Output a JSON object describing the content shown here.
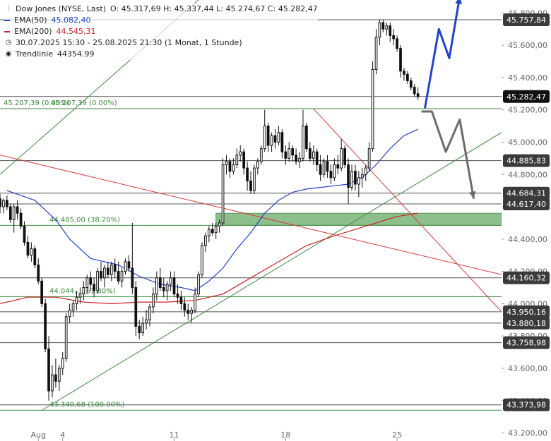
{
  "legend": {
    "instrument": "Dow Jones (NYSE, Last)",
    "ohlc": "O: 45.317,69  H: 45.337,44  L: 45.274,67  C: 45.282,47",
    "ema50_label": "EMA(50)",
    "ema50_value": "45.082,40",
    "ema200_label": "EMA(200)",
    "ema200_value": "44.545,31",
    "range": "30.07.2025 15:30 - 25.08.2025 21:30  (1 Monat, 1 Stunde)",
    "trendline_label": "Trendlinie",
    "trendline_value": "44354.99",
    "colors": {
      "ema50": "#2244cc",
      "ema200": "#cc2222",
      "text": "#222222"
    }
  },
  "chart_data": {
    "type": "line",
    "instrument": "Dow Jones (NYSE, Last)",
    "y_ticks": [
      "43.200,00",
      "43.400,00",
      "43.600,00",
      "43.800,00",
      "44.000,00",
      "44.200,00",
      "44.400,00",
      "44.600,00",
      "44.800,00",
      "45.000,00",
      "45.200,00",
      "45.400,00",
      "45.600,00",
      "45.800,00"
    ],
    "y_tick_values": [
      43200,
      43400,
      43600,
      43800,
      44000,
      44200,
      44400,
      44600,
      44800,
      45000,
      45200,
      45400,
      45600,
      45800
    ],
    "ylim": [
      43150,
      45880
    ],
    "x_ticks": [
      {
        "label": "Aug",
        "t": 5.5
      },
      {
        "label": "4",
        "t": 9
      },
      {
        "label": "11",
        "t": 25
      },
      {
        "label": "18",
        "t": 41
      },
      {
        "label": "25",
        "t": 57
      }
    ],
    "xlim": [
      0,
      72
    ],
    "price_levels": [
      {
        "value": 45757.84,
        "label": "45.757,84",
        "style": "dark"
      },
      {
        "value": 45282.47,
        "label": "45.282,47",
        "style": "black"
      },
      {
        "value": 44885.83,
        "label": "44.885,83",
        "style": "dark"
      },
      {
        "value": 44684.31,
        "label": "44.684,31",
        "style": "dark"
      },
      {
        "value": 44617.4,
        "label": "44.617,40",
        "style": "dark"
      },
      {
        "value": 44160.32,
        "label": "44.160,32",
        "style": "dark"
      },
      {
        "value": 43950.16,
        "label": "43.950,16",
        "style": "dark"
      },
      {
        "value": 43880.18,
        "label": "43.880,18",
        "style": "dark"
      },
      {
        "value": 43758.98,
        "label": "43.758,98",
        "style": "dark"
      },
      {
        "value": 43373.98,
        "label": "43.373,98",
        "style": "dark"
      }
    ],
    "fib_levels": [
      {
        "value": 45207.39,
        "label": "45.207,39 (0.00%)",
        "ghost_label": "45.207,39 (0.00%)"
      },
      {
        "value": 44485.0,
        "label": "44.485,00 (38.20%)"
      },
      {
        "value": 44044.0,
        "label": "44.044,...(61.80%)"
      },
      {
        "value": 43340.68,
        "label": "43.340,68 (100.00%)"
      }
    ],
    "support_zone": {
      "low": 44485,
      "high": 44560,
      "t0": 31,
      "t1": 72
    },
    "candles": [
      [
        0,
        44650,
        44680,
        44560,
        44600
      ],
      [
        0.5,
        44600,
        44650,
        44560,
        44640
      ],
      [
        1,
        44640,
        44670,
        44580,
        44600
      ],
      [
        1.5,
        44600,
        44620,
        44500,
        44520
      ],
      [
        2,
        44520,
        44620,
        44440,
        44600
      ],
      [
        2.5,
        44600,
        44640,
        44520,
        44560
      ],
      [
        3,
        44560,
        44590,
        44460,
        44480
      ],
      [
        3.5,
        44480,
        44510,
        44360,
        44380
      ],
      [
        4,
        44380,
        44420,
        44280,
        44300
      ],
      [
        4.5,
        44300,
        44380,
        44260,
        44340
      ],
      [
        5,
        44340,
        44360,
        44220,
        44240
      ],
      [
        5.5,
        44240,
        44280,
        44120,
        44140
      ],
      [
        6,
        44140,
        44160,
        43980,
        44000
      ],
      [
        6.5,
        44000,
        44030,
        43700,
        43720
      ],
      [
        7,
        43720,
        43800,
        43400,
        43460
      ],
      [
        7.5,
        43460,
        43620,
        43420,
        43560
      ],
      [
        8,
        43560,
        43660,
        43480,
        43520
      ],
      [
        8.5,
        43520,
        43620,
        43460,
        43600
      ],
      [
        9,
        43600,
        43700,
        43560,
        43660
      ],
      [
        9.5,
        43660,
        43940,
        43640,
        43920
      ],
      [
        10,
        43920,
        44000,
        43880,
        43960
      ],
      [
        10.5,
        43960,
        44020,
        43920,
        44000
      ],
      [
        11,
        44000,
        44080,
        43960,
        44040
      ],
      [
        11.5,
        44040,
        44100,
        44000,
        44060
      ],
      [
        12,
        44060,
        44140,
        44020,
        44100
      ],
      [
        12.5,
        44100,
        44180,
        44060,
        44160
      ],
      [
        13,
        44160,
        44200,
        44080,
        44120
      ],
      [
        13.5,
        44120,
        44160,
        44040,
        44080
      ],
      [
        14,
        44080,
        44220,
        44060,
        44200
      ],
      [
        14.5,
        44200,
        44260,
        44140,
        44160
      ],
      [
        15,
        44160,
        44240,
        44100,
        44220
      ],
      [
        15.5,
        44220,
        44260,
        44160,
        44180
      ],
      [
        16,
        44180,
        44260,
        44140,
        44240
      ],
      [
        16.5,
        44240,
        44280,
        44160,
        44200
      ],
      [
        17,
        44200,
        44260,
        44120,
        44140
      ],
      [
        17.5,
        44140,
        44220,
        44100,
        44200
      ],
      [
        18,
        44200,
        44280,
        44180,
        44260
      ],
      [
        18.5,
        44260,
        44300,
        44200,
        44220
      ],
      [
        19,
        44220,
        44500,
        44060,
        44100
      ],
      [
        19.5,
        44100,
        44140,
        43800,
        43860
      ],
      [
        20,
        43860,
        43900,
        43780,
        43820
      ],
      [
        20.5,
        43820,
        43920,
        43800,
        43880
      ],
      [
        21,
        43880,
        43960,
        43840,
        43900
      ],
      [
        21.5,
        43900,
        44000,
        43860,
        43980
      ],
      [
        22,
        43980,
        44100,
        43940,
        44060
      ],
      [
        22.5,
        44060,
        44200,
        44020,
        44160
      ],
      [
        23,
        44160,
        44220,
        44080,
        44100
      ],
      [
        23.5,
        44100,
        44160,
        44040,
        44080
      ],
      [
        24,
        44080,
        44140,
        44020,
        44120
      ],
      [
        24.5,
        44120,
        44200,
        44080,
        44160
      ],
      [
        25,
        44160,
        44200,
        44040,
        44060
      ],
      [
        25.5,
        44060,
        44120,
        44000,
        44040
      ],
      [
        26,
        44040,
        44080,
        43960,
        44000
      ],
      [
        26.5,
        44000,
        44040,
        43920,
        43960
      ],
      [
        27,
        43960,
        44000,
        43900,
        43940
      ],
      [
        27.5,
        43940,
        43980,
        43880,
        43960
      ],
      [
        28,
        43960,
        44100,
        43940,
        44060
      ],
      [
        28.5,
        44060,
        44200,
        44040,
        44180
      ],
      [
        29,
        44180,
        44380,
        44160,
        44360
      ],
      [
        29.5,
        44360,
        44440,
        44320,
        44420
      ],
      [
        30,
        44420,
        44480,
        44380,
        44460
      ],
      [
        30.5,
        44460,
        44500,
        44420,
        44440
      ],
      [
        31,
        44440,
        44500,
        44400,
        44480
      ],
      [
        31.5,
        44480,
        44520,
        44440,
        44500
      ],
      [
        32,
        44500,
        44900,
        44480,
        44860
      ],
      [
        32.5,
        44860,
        44920,
        44800,
        44880
      ],
      [
        33,
        44880,
        44900,
        44780,
        44820
      ],
      [
        33.5,
        44820,
        44900,
        44800,
        44860
      ],
      [
        34,
        44860,
        44960,
        44840,
        44920
      ],
      [
        34.5,
        44920,
        44980,
        44880,
        44940
      ],
      [
        35,
        44940,
        44960,
        44800,
        44840
      ],
      [
        35.5,
        44840,
        44880,
        44700,
        44760
      ],
      [
        36,
        44760,
        44820,
        44680,
        44700
      ],
      [
        36.5,
        44700,
        44860,
        44680,
        44840
      ],
      [
        37,
        44840,
        44900,
        44800,
        44880
      ],
      [
        37.5,
        44880,
        44980,
        44860,
        44960
      ],
      [
        38,
        44960,
        45200,
        44940,
        45100
      ],
      [
        38.5,
        45100,
        45120,
        44940,
        44980
      ],
      [
        39,
        44980,
        45060,
        44940,
        45040
      ],
      [
        39.5,
        45040,
        45080,
        44960,
        45000
      ],
      [
        40,
        45000,
        45100,
        44980,
        45060
      ],
      [
        40.5,
        45060,
        45080,
        44900,
        44940
      ],
      [
        41,
        44940,
        44980,
        44860,
        44900
      ],
      [
        41.5,
        44900,
        45000,
        44880,
        44960
      ],
      [
        42,
        44960,
        44980,
        44880,
        44920
      ],
      [
        42.5,
        44920,
        44960,
        44860,
        44880
      ],
      [
        43,
        44880,
        44940,
        44840,
        44900
      ],
      [
        43.5,
        44900,
        45200,
        44880,
        45100
      ],
      [
        44,
        45100,
        45120,
        44940,
        44960
      ],
      [
        44.5,
        44960,
        45000,
        44880,
        44900
      ],
      [
        45,
        44900,
        44980,
        44860,
        44940
      ],
      [
        45.5,
        44940,
        44960,
        44820,
        44860
      ],
      [
        46,
        44860,
        44920,
        44760,
        44800
      ],
      [
        46.5,
        44800,
        44900,
        44780,
        44880
      ],
      [
        47,
        44880,
        44920,
        44780,
        44820
      ],
      [
        47.5,
        44820,
        44860,
        44740,
        44780
      ],
      [
        48,
        44780,
        44900,
        44760,
        44860
      ],
      [
        48.5,
        44860,
        44920,
        44800,
        44840
      ],
      [
        49,
        44840,
        45020,
        44820,
        44960
      ],
      [
        49.5,
        44960,
        44980,
        44840,
        44860
      ],
      [
        50,
        44860,
        44900,
        44620,
        44720
      ],
      [
        50.5,
        44720,
        44860,
        44700,
        44820
      ],
      [
        51,
        44820,
        44860,
        44700,
        44740
      ],
      [
        51.5,
        44740,
        44820,
        44660,
        44780
      ],
      [
        52,
        44780,
        44840,
        44720,
        44800
      ],
      [
        52.5,
        44800,
        44860,
        44760,
        44840
      ],
      [
        53,
        44840,
        45000,
        44820,
        44960
      ],
      [
        53.5,
        44960,
        45500,
        44940,
        45450
      ],
      [
        54,
        45450,
        45700,
        45420,
        45650
      ],
      [
        54.5,
        45650,
        45760,
        45600,
        45740
      ],
      [
        55,
        45740,
        45760,
        45680,
        45700
      ],
      [
        55.5,
        45700,
        45740,
        45660,
        45720
      ],
      [
        56,
        45720,
        45740,
        45620,
        45660
      ],
      [
        56.5,
        45660,
        45700,
        45600,
        45640
      ],
      [
        57,
        45640,
        45660,
        45560,
        45580
      ],
      [
        57.5,
        45580,
        45600,
        45400,
        45440
      ],
      [
        58,
        45440,
        45460,
        45380,
        45420
      ],
      [
        58.5,
        45420,
        45440,
        45360,
        45380
      ],
      [
        59,
        45380,
        45400,
        45320,
        45340
      ],
      [
        59.5,
        45340,
        45360,
        45280,
        45300
      ],
      [
        60,
        45300,
        45340,
        45260,
        45282
      ]
    ],
    "ema50": [
      [
        1,
        44700
      ],
      [
        5,
        44640
      ],
      [
        8,
        44520
      ],
      [
        10,
        44400
      ],
      [
        13,
        44280
      ],
      [
        17,
        44240
      ],
      [
        20,
        44170
      ],
      [
        23,
        44120
      ],
      [
        26,
        44100
      ],
      [
        28,
        44080
      ],
      [
        30,
        44140
      ],
      [
        32,
        44220
      ],
      [
        34,
        44340
      ],
      [
        36,
        44440
      ],
      [
        38,
        44560
      ],
      [
        40,
        44640
      ],
      [
        42,
        44690
      ],
      [
        44,
        44710
      ],
      [
        46,
        44720
      ],
      [
        48,
        44730
      ],
      [
        50,
        44740
      ],
      [
        52,
        44780
      ],
      [
        54,
        44860
      ],
      [
        56,
        44960
      ],
      [
        58,
        45040
      ],
      [
        60,
        45080
      ]
    ],
    "ema200": [
      [
        0,
        44000
      ],
      [
        4,
        44040
      ],
      [
        8,
        44040
      ],
      [
        12,
        44010
      ],
      [
        16,
        44000
      ],
      [
        20,
        44010
      ],
      [
        24,
        44010
      ],
      [
        28,
        44020
      ],
      [
        32,
        44060
      ],
      [
        36,
        44160
      ],
      [
        40,
        44260
      ],
      [
        44,
        44360
      ],
      [
        48,
        44420
      ],
      [
        51,
        44460
      ],
      [
        54,
        44500
      ],
      [
        57,
        44540
      ],
      [
        60,
        44560
      ]
    ],
    "trend_lines": [
      {
        "color": "#3d8b3d",
        "from": [
          0,
          44800
        ],
        "to": [
          29,
          45900
        ]
      },
      {
        "color": "#3d8b3d",
        "from": [
          6,
          43340
        ],
        "to": [
          72,
          45060
        ]
      },
      {
        "color": "#d93b3b",
        "from": [
          0,
          44920
        ],
        "to": [
          72,
          44180
        ]
      },
      {
        "color": "#d93b3b",
        "from": [
          45,
          45207
        ],
        "to": [
          72,
          43950
        ]
      }
    ],
    "forecast_paths": [
      {
        "color": "#2244cc",
        "points": [
          [
            61,
            45210
          ],
          [
            63,
            45700
          ],
          [
            64.5,
            45520
          ],
          [
            66,
            45900
          ]
        ]
      },
      {
        "color": "#6b6b6b",
        "points": [
          [
            60.5,
            45190
          ],
          [
            62,
            45190
          ],
          [
            64,
            44940
          ],
          [
            66,
            45140
          ],
          [
            68,
            44650
          ]
        ]
      }
    ]
  }
}
